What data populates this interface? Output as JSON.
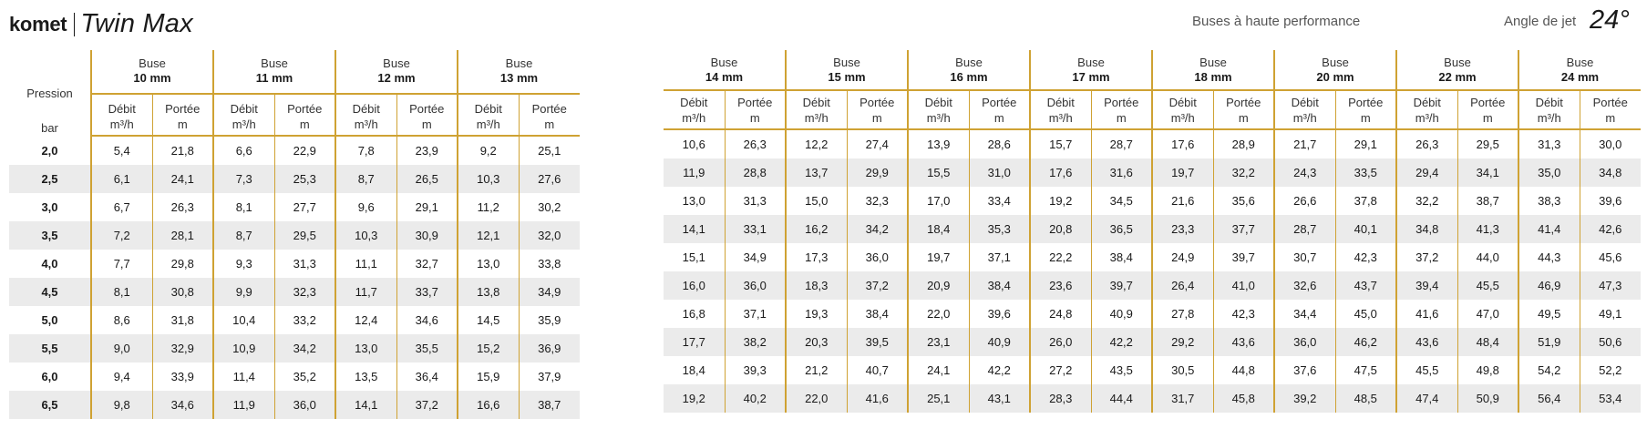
{
  "header": {
    "brand": "komet",
    "product": "Twin Max",
    "subtitle": "Buses à haute performance",
    "angle_label": "Angle de jet",
    "angle_value": "24°"
  },
  "labels": {
    "nozzle": "Buse",
    "pressure": "Pression",
    "pressure_unit": "bar",
    "flow": "Débit",
    "flow_unit": "m³/h",
    "range": "Portée",
    "range_unit": "m"
  },
  "pressures": [
    "2,0",
    "2,5",
    "3,0",
    "3,5",
    "4,0",
    "4,5",
    "5,0",
    "5,5",
    "6,0",
    "6,5"
  ],
  "left_table": {
    "nozzles": [
      {
        "size": "10 mm",
        "flow": [
          "5,4",
          "6,1",
          "6,7",
          "7,2",
          "7,7",
          "8,1",
          "8,6",
          "9,0",
          "9,4",
          "9,8"
        ],
        "range": [
          "21,8",
          "24,1",
          "26,3",
          "28,1",
          "29,8",
          "30,8",
          "31,8",
          "32,9",
          "33,9",
          "34,6"
        ]
      },
      {
        "size": "11 mm",
        "flow": [
          "6,6",
          "7,3",
          "8,1",
          "8,7",
          "9,3",
          "9,9",
          "10,4",
          "10,9",
          "11,4",
          "11,9"
        ],
        "range": [
          "22,9",
          "25,3",
          "27,7",
          "29,5",
          "31,3",
          "32,3",
          "33,2",
          "34,2",
          "35,2",
          "36,0"
        ]
      },
      {
        "size": "12 mm",
        "flow": [
          "7,8",
          "8,7",
          "9,6",
          "10,3",
          "11,1",
          "11,7",
          "12,4",
          "13,0",
          "13,5",
          "14,1"
        ],
        "range": [
          "23,9",
          "26,5",
          "29,1",
          "30,9",
          "32,7",
          "33,7",
          "34,6",
          "35,5",
          "36,4",
          "37,2"
        ]
      },
      {
        "size": "13 mm",
        "flow": [
          "9,2",
          "10,3",
          "11,2",
          "12,1",
          "13,0",
          "13,8",
          "14,5",
          "15,2",
          "15,9",
          "16,6"
        ],
        "range": [
          "25,1",
          "27,6",
          "30,2",
          "32,0",
          "33,8",
          "34,9",
          "35,9",
          "36,9",
          "37,9",
          "38,7"
        ]
      }
    ]
  },
  "right_table": {
    "nozzles": [
      {
        "size": "14 mm",
        "flow": [
          "10,6",
          "11,9",
          "13,0",
          "14,1",
          "15,1",
          "16,0",
          "16,8",
          "17,7",
          "18,4",
          "19,2"
        ],
        "range": [
          "26,3",
          "28,8",
          "31,3",
          "33,1",
          "34,9",
          "36,0",
          "37,1",
          "38,2",
          "39,3",
          "40,2"
        ]
      },
      {
        "size": "15 mm",
        "flow": [
          "12,2",
          "13,7",
          "15,0",
          "16,2",
          "17,3",
          "18,3",
          "19,3",
          "20,3",
          "21,2",
          "22,0"
        ],
        "range": [
          "27,4",
          "29,9",
          "32,3",
          "34,2",
          "36,0",
          "37,2",
          "38,4",
          "39,5",
          "40,7",
          "41,6"
        ]
      },
      {
        "size": "16 mm",
        "flow": [
          "13,9",
          "15,5",
          "17,0",
          "18,4",
          "19,7",
          "20,9",
          "22,0",
          "23,1",
          "24,1",
          "25,1"
        ],
        "range": [
          "28,6",
          "31,0",
          "33,4",
          "35,3",
          "37,1",
          "38,4",
          "39,6",
          "40,9",
          "42,2",
          "43,1"
        ]
      },
      {
        "size": "17 mm",
        "flow": [
          "15,7",
          "17,6",
          "19,2",
          "20,8",
          "22,2",
          "23,6",
          "24,8",
          "26,0",
          "27,2",
          "28,3"
        ],
        "range": [
          "28,7",
          "31,6",
          "34,5",
          "36,5",
          "38,4",
          "39,7",
          "40,9",
          "42,2",
          "43,5",
          "44,4"
        ]
      },
      {
        "size": "18 mm",
        "flow": [
          "17,6",
          "19,7",
          "21,6",
          "23,3",
          "24,9",
          "26,4",
          "27,8",
          "29,2",
          "30,5",
          "31,7"
        ],
        "range": [
          "28,9",
          "32,2",
          "35,6",
          "37,7",
          "39,7",
          "41,0",
          "42,3",
          "43,6",
          "44,8",
          "45,8"
        ]
      },
      {
        "size": "20 mm",
        "flow": [
          "21,7",
          "24,3",
          "26,6",
          "28,7",
          "30,7",
          "32,6",
          "34,4",
          "36,0",
          "37,6",
          "39,2"
        ],
        "range": [
          "29,1",
          "33,5",
          "37,8",
          "40,1",
          "42,3",
          "43,7",
          "45,0",
          "46,2",
          "47,5",
          "48,5"
        ]
      },
      {
        "size": "22 mm",
        "flow": [
          "26,3",
          "29,4",
          "32,2",
          "34,8",
          "37,2",
          "39,4",
          "41,6",
          "43,6",
          "45,5",
          "47,4"
        ],
        "range": [
          "29,5",
          "34,1",
          "38,7",
          "41,3",
          "44,0",
          "45,5",
          "47,0",
          "48,4",
          "49,8",
          "50,9"
        ]
      },
      {
        "size": "24 mm",
        "flow": [
          "31,3",
          "35,0",
          "38,3",
          "41,4",
          "44,3",
          "46,9",
          "49,5",
          "51,9",
          "54,2",
          "56,4"
        ],
        "range": [
          "30,0",
          "34,8",
          "39,6",
          "42,6",
          "45,6",
          "47,3",
          "49,1",
          "50,6",
          "52,2",
          "53,4"
        ]
      }
    ]
  }
}
